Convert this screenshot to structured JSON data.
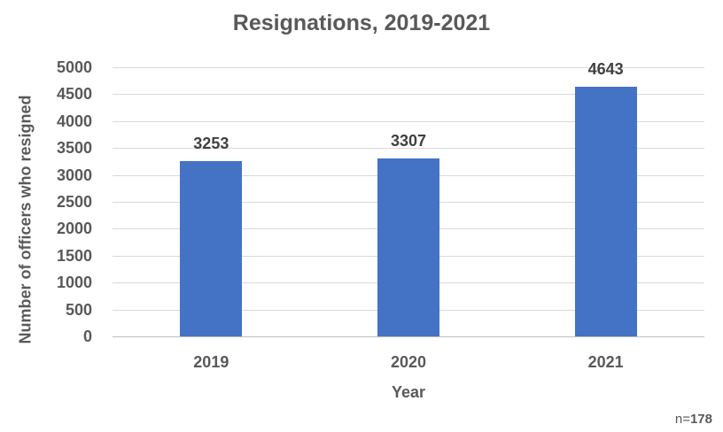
{
  "chart_data": {
    "type": "bar",
    "title": "Resignations, 2019-2021",
    "xlabel": "Year",
    "ylabel": "Number of officers who resigned",
    "categories": [
      "2019",
      "2020",
      "2021"
    ],
    "values": [
      3253,
      3307,
      4643
    ],
    "data_labels": [
      "3253",
      "3307",
      "4643"
    ],
    "ylim": [
      0,
      5000
    ],
    "ytick_step": 500,
    "yticks": [
      0,
      500,
      1000,
      1500,
      2000,
      2500,
      3000,
      3500,
      4000,
      4500,
      5000
    ],
    "grid": "horizontal",
    "legend_position": "none",
    "bar_color": "#4472C4",
    "gridline_color": "#D9D9D9",
    "baseline_color": "#BFBFBF",
    "tick_text_color": "#595959",
    "data_label_color": "#404040"
  },
  "annotation": {
    "prefix": "n=",
    "value": "178"
  }
}
